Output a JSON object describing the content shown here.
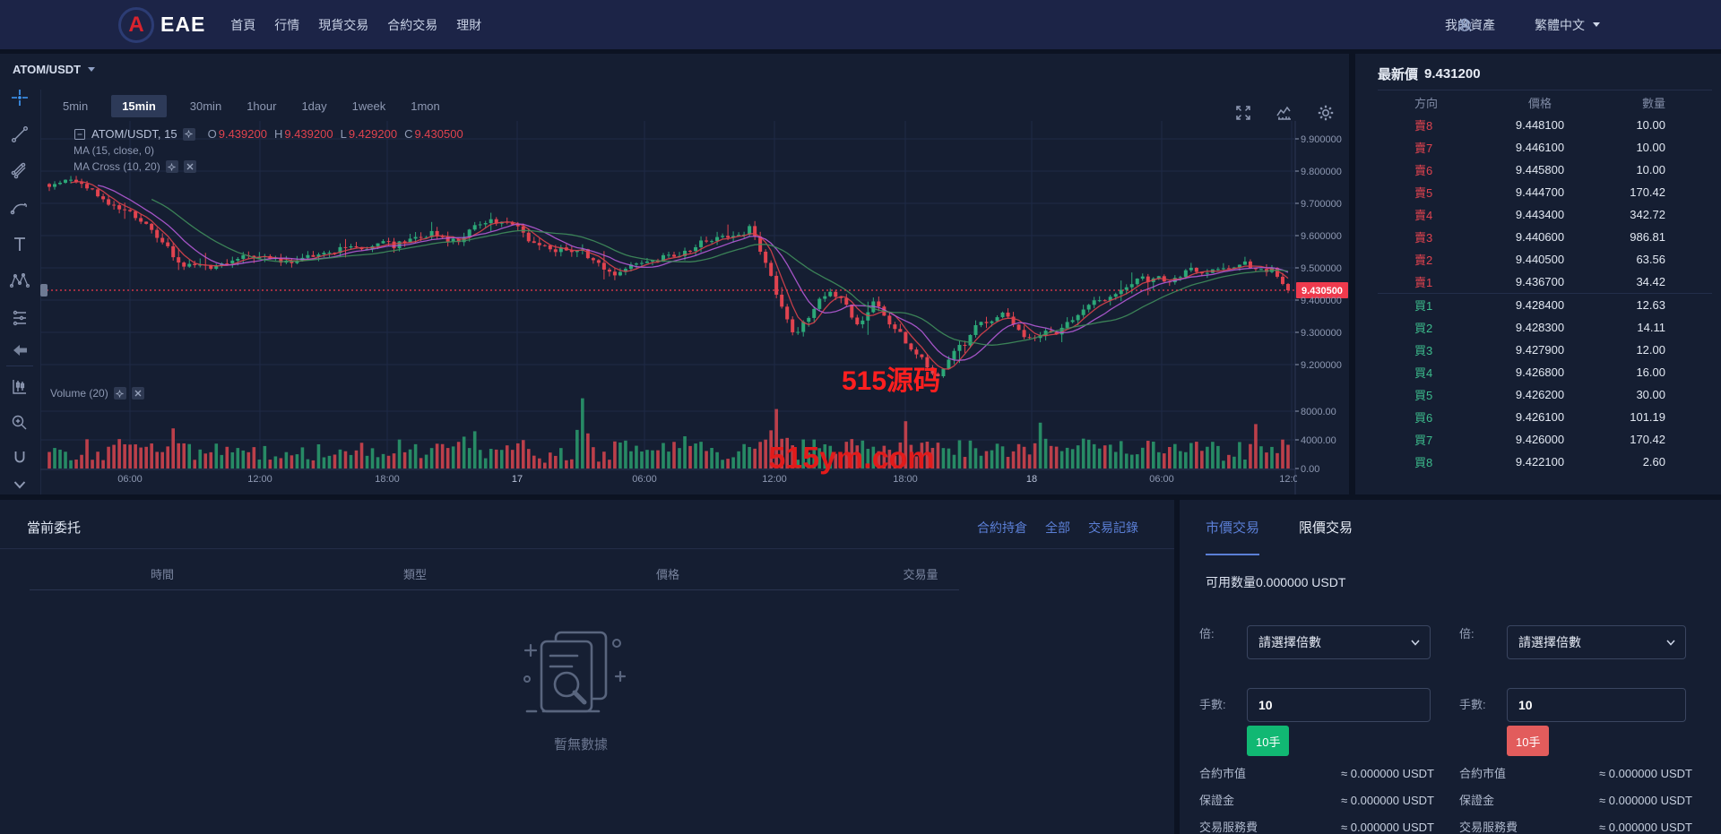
{
  "navbar": {
    "logo_letter": "A",
    "brand": "EAE",
    "menu": [
      "首頁",
      "行情",
      "現貨交易",
      "合約交易",
      "理財"
    ],
    "assets_label": "我的資產",
    "language_label": "繁體中文"
  },
  "chart": {
    "symbol": "ATOM/USDT",
    "timeframes": [
      "5min",
      "15min",
      "30min",
      "1hour",
      "1day",
      "1week",
      "1mon"
    ],
    "active_timeframe": "15min",
    "legend": {
      "title": "ATOM/USDT, 15",
      "items": [
        [
          "O",
          "9.439200"
        ],
        [
          "H",
          "9.439200"
        ],
        [
          "L",
          "9.429200"
        ],
        [
          "C",
          "9.430500"
        ]
      ]
    },
    "ma_legend": "MA (15, close, 0)",
    "ma_cross_legend": "MA Cross (10, 20)",
    "volume_legend": "Volume (20)",
    "watermark_center": "515源码",
    "watermark_bottom": "515ym.com",
    "current_price_label": "9.430500"
  },
  "chart_data": {
    "type": "candlestick",
    "title": "ATOM/USDT 15min",
    "y_axis": {
      "ticks": [
        [
          "9.900000",
          9.9
        ],
        [
          "9.800000",
          9.8
        ],
        [
          "9.700000",
          9.7
        ],
        [
          "9.600000",
          9.6
        ],
        [
          "9.500000",
          9.5
        ],
        [
          "9.400000",
          9.4
        ],
        [
          "9.300000",
          9.3
        ],
        [
          "9.200000",
          9.2
        ]
      ]
    },
    "volume_axis": {
      "ticks": [
        [
          "8000.00",
          8000
        ],
        [
          "4000.00",
          4000
        ],
        [
          "0.00",
          0
        ]
      ]
    },
    "x_axis": {
      "ticks": [
        [
          "06:00",
          100
        ],
        [
          "12:00",
          245
        ],
        [
          "18:00",
          387
        ],
        [
          "17",
          532
        ],
        [
          "06:00",
          674
        ],
        [
          "12:00",
          819
        ],
        [
          "18:00",
          965
        ],
        [
          "18",
          1106
        ],
        [
          "06:00",
          1251
        ],
        [
          "12:00",
          1396
        ]
      ]
    },
    "current_price": 9.4305,
    "ohlc": {
      "open": 9.4392,
      "high": 9.4392,
      "low": 9.4292,
      "close": 9.4305
    },
    "grid": true,
    "legend_position": "top-left",
    "ma_periods": [
      5,
      10,
      20
    ],
    "candles": {
      "count": 231,
      "seed": 1337,
      "trend": [
        [
          0,
          9.76
        ],
        [
          0.02,
          9.78
        ],
        [
          0.045,
          9.7
        ],
        [
          0.07,
          9.66
        ],
        [
          0.1,
          9.52
        ],
        [
          0.13,
          9.48
        ],
        [
          0.16,
          9.55
        ],
        [
          0.19,
          9.52
        ],
        [
          0.22,
          9.55
        ],
        [
          0.25,
          9.56
        ],
        [
          0.28,
          9.57
        ],
        [
          0.305,
          9.62
        ],
        [
          0.325,
          9.57
        ],
        [
          0.345,
          9.66
        ],
        [
          0.37,
          9.62
        ],
        [
          0.4,
          9.56
        ],
        [
          0.43,
          9.54
        ],
        [
          0.455,
          9.47
        ],
        [
          0.48,
          9.52
        ],
        [
          0.51,
          9.55
        ],
        [
          0.54,
          9.6
        ],
        [
          0.565,
          9.63
        ],
        [
          0.585,
          9.4
        ],
        [
          0.6,
          9.28
        ],
        [
          0.615,
          9.38
        ],
        [
          0.63,
          9.44
        ],
        [
          0.65,
          9.32
        ],
        [
          0.665,
          9.4
        ],
        [
          0.68,
          9.32
        ],
        [
          0.7,
          9.22
        ],
        [
          0.715,
          9.15
        ],
        [
          0.73,
          9.24
        ],
        [
          0.75,
          9.33
        ],
        [
          0.77,
          9.36
        ],
        [
          0.79,
          9.28
        ],
        [
          0.81,
          9.3
        ],
        [
          0.84,
          9.4
        ],
        [
          0.87,
          9.45
        ],
        [
          0.9,
          9.47
        ],
        [
          0.93,
          9.5
        ],
        [
          0.96,
          9.51
        ],
        [
          0.985,
          9.5
        ],
        [
          1,
          9.43
        ]
      ],
      "volume_spikes": [
        [
          0.1,
          5600
        ],
        [
          0.345,
          5200
        ],
        [
          0.431,
          9800
        ],
        [
          0.585,
          8300
        ],
        [
          0.69,
          6600
        ],
        [
          0.8,
          6400
        ],
        [
          0.975,
          6200
        ]
      ]
    },
    "colors": {
      "up": "#2ca878",
      "down": "#e0434f",
      "vol_up": "#2a9d6f",
      "vol_down": "#d9454f",
      "ma_fast": "#d8414b",
      "ma_mid": "#b45ad6",
      "ma_slow": "#3f8d5b",
      "grid": "#1e2a46",
      "axis": "#2b3554",
      "label": "#8e99b3",
      "label_bright": "#b9c3da",
      "price_line": "#ef3a4d"
    }
  },
  "orderbook": {
    "title": "最新價",
    "last_price": "9.431200",
    "columns": [
      "方向",
      "價格",
      "數量"
    ],
    "asks": [
      [
        "賣8",
        "9.448100",
        "10.00"
      ],
      [
        "賣7",
        "9.446100",
        "10.00"
      ],
      [
        "賣6",
        "9.445800",
        "10.00"
      ],
      [
        "賣5",
        "9.444700",
        "170.42"
      ],
      [
        "賣4",
        "9.443400",
        "342.72"
      ],
      [
        "賣3",
        "9.440600",
        "986.81"
      ],
      [
        "賣2",
        "9.440500",
        "63.56"
      ],
      [
        "賣1",
        "9.436700",
        "34.42"
      ]
    ],
    "bids": [
      [
        "買1",
        "9.428400",
        "12.63"
      ],
      [
        "買2",
        "9.428300",
        "14.11"
      ],
      [
        "買3",
        "9.427900",
        "12.00"
      ],
      [
        "買4",
        "9.426800",
        "16.00"
      ],
      [
        "買5",
        "9.426200",
        "30.00"
      ],
      [
        "買6",
        "9.426100",
        "101.19"
      ],
      [
        "買7",
        "9.426000",
        "170.42"
      ],
      [
        "買8",
        "9.422100",
        "2.60"
      ]
    ]
  },
  "orders": {
    "title": "當前委托",
    "links": [
      "合約持倉",
      "全部",
      "交易記錄"
    ],
    "columns": [
      "時間",
      "類型",
      "價格",
      "交易量"
    ],
    "empty_text": "暫無數據"
  },
  "trade": {
    "tabs": [
      "市價交易",
      "限價交易"
    ],
    "active_tab": "市價交易",
    "available": "可用数量0.000000 USDT",
    "forms": [
      {
        "side": "buy",
        "multiplier_label": "倍:",
        "multiplier_value": "請選擇倍數",
        "lots_label": "手數:",
        "lots_value": "10",
        "button_label": "10手",
        "rows": [
          [
            "合約市值",
            "≈ 0.000000 USDT"
          ],
          [
            "保證金",
            "≈ 0.000000 USDT"
          ],
          [
            "交易服務費",
            "≈ 0.000000 USDT"
          ]
        ]
      },
      {
        "side": "sell",
        "multiplier_label": "倍:",
        "multiplier_value": "請選擇倍數",
        "lots_label": "手數:",
        "lots_value": "10",
        "button_label": "10手",
        "rows": [
          [
            "合約市值",
            "≈ 0.000000 USDT"
          ],
          [
            "保證金",
            "≈ 0.000000 USDT"
          ],
          [
            "交易服務費",
            "≈ 0.000000 USDT"
          ]
        ]
      }
    ]
  }
}
